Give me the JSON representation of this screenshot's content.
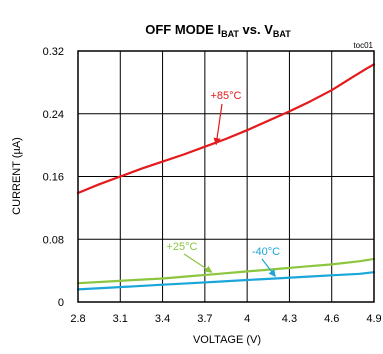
{
  "chart_data": {
    "type": "line",
    "title": {
      "prefix": "OFF MODE I",
      "sub1": "BAT",
      "middle": " vs. V",
      "sub2": "BAT"
    },
    "code_label": "toc01",
    "xlabel": "VOLTAGE (V)",
    "ylabel": "CURRENT (µA)",
    "xlim": [
      2.8,
      4.9
    ],
    "ylim": [
      0,
      0.32
    ],
    "x_ticks": [
      "2.8",
      "3.1",
      "3.4",
      "3.7",
      "4",
      "4.3",
      "4.6",
      "4.9"
    ],
    "y_ticks": [
      "0",
      "0.08",
      "0.16",
      "0.24",
      "0.32"
    ],
    "grid": true,
    "series": [
      {
        "name": "+85°C",
        "color": "#e41a1c",
        "x": [
          2.8,
          2.95,
          3.1,
          3.25,
          3.4,
          3.55,
          3.7,
          3.85,
          4.0,
          4.15,
          4.3,
          4.45,
          4.6,
          4.75,
          4.85,
          4.9
        ],
        "y": [
          0.139,
          0.15,
          0.16,
          0.17,
          0.179,
          0.188,
          0.198,
          0.208,
          0.219,
          0.231,
          0.243,
          0.256,
          0.27,
          0.287,
          0.298,
          0.303
        ]
      },
      {
        "name": "+25°C",
        "color": "#8cc63f",
        "x": [
          2.8,
          3.0,
          3.2,
          3.4,
          3.6,
          3.8,
          4.0,
          4.2,
          4.4,
          4.6,
          4.8,
          4.9
        ],
        "y": [
          0.024,
          0.026,
          0.028,
          0.03,
          0.033,
          0.036,
          0.039,
          0.042,
          0.045,
          0.048,
          0.052,
          0.055
        ]
      },
      {
        "name": "-40°C",
        "color": "#1ba6d9",
        "x": [
          2.8,
          3.0,
          3.2,
          3.4,
          3.6,
          3.8,
          4.0,
          4.2,
          4.4,
          4.6,
          4.8,
          4.9
        ],
        "y": [
          0.016,
          0.018,
          0.02,
          0.022,
          0.024,
          0.026,
          0.028,
          0.03,
          0.032,
          0.034,
          0.036,
          0.038
        ]
      }
    ]
  }
}
